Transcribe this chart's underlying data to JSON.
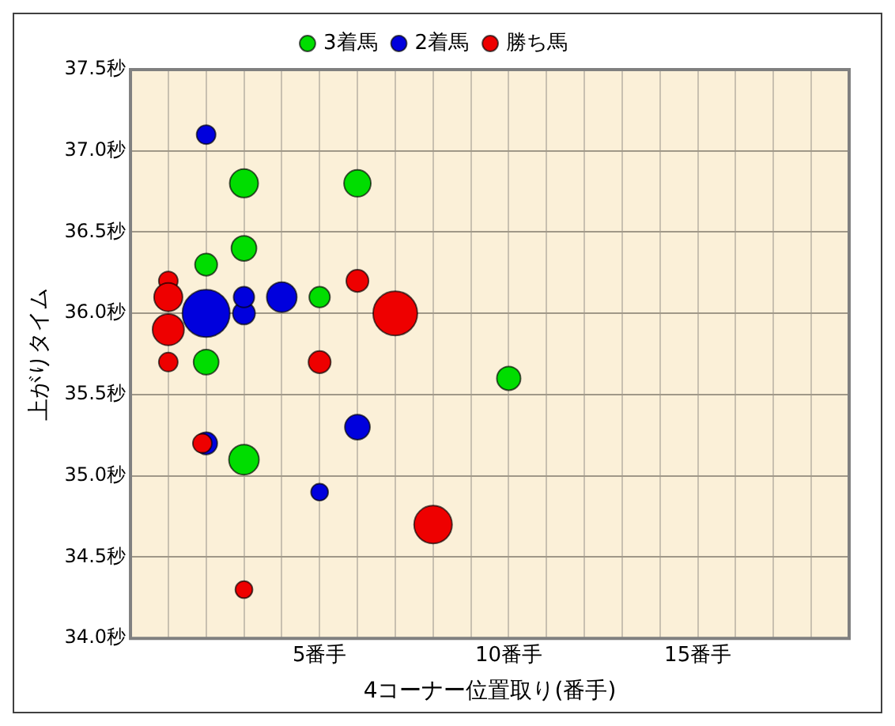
{
  "chart_data": {
    "type": "bubble",
    "xlabel": "4コーナー位置取り(番手)",
    "ylabel": "上がりタイム",
    "xlim": [
      0,
      19
    ],
    "xticks": [
      {
        "value": 1,
        "label": null
      },
      {
        "value": 2,
        "label": null
      },
      {
        "value": 3,
        "label": null
      },
      {
        "value": 4,
        "label": null
      },
      {
        "value": 5,
        "label": "5番手"
      },
      {
        "value": 6,
        "label": null
      },
      {
        "value": 7,
        "label": null
      },
      {
        "value": 8,
        "label": null
      },
      {
        "value": 9,
        "label": null
      },
      {
        "value": 10,
        "label": "10番手"
      },
      {
        "value": 11,
        "label": null
      },
      {
        "value": 12,
        "label": null
      },
      {
        "value": 13,
        "label": null
      },
      {
        "value": 14,
        "label": null
      },
      {
        "value": 15,
        "label": "15番手"
      },
      {
        "value": 16,
        "label": null
      },
      {
        "value": 17,
        "label": null
      },
      {
        "value": 18,
        "label": null
      }
    ],
    "ylim": [
      34.0,
      37.5
    ],
    "yticks": [
      {
        "value": 34.0,
        "label": "34.0秒"
      },
      {
        "value": 34.5,
        "label": "34.5秒"
      },
      {
        "value": 35.0,
        "label": "35.0秒"
      },
      {
        "value": 35.5,
        "label": "35.5秒"
      },
      {
        "value": 36.0,
        "label": "36.0秒"
      },
      {
        "value": 36.5,
        "label": "36.5秒"
      },
      {
        "value": 37.0,
        "label": "37.0秒"
      },
      {
        "value": 37.5,
        "label": "37.5秒"
      }
    ],
    "grid": true,
    "legend": "top",
    "series": [
      {
        "name": "3着馬",
        "color": "#00dd00",
        "x": [
          3,
          6,
          3,
          2,
          5,
          2,
          3,
          10
        ],
        "values": [
          36.8,
          36.8,
          36.4,
          36.3,
          36.1,
          35.7,
          35.1,
          35.6
        ],
        "sizes": [
          0.36,
          0.32,
          0.28,
          0.22,
          0.19,
          0.28,
          0.4,
          0.25
        ]
      },
      {
        "name": "2着馬",
        "color": "#0000dd",
        "x": [
          2,
          2,
          3,
          3,
          4,
          6,
          2,
          5
        ],
        "values": [
          37.1,
          36.0,
          36.0,
          36.1,
          36.1,
          35.3,
          35.2,
          34.9
        ],
        "sizes": [
          0.16,
          1,
          0.22,
          0.19,
          0.4,
          0.28,
          0.22,
          0.13
        ]
      },
      {
        "name": "勝ち馬",
        "color": "#ee0000",
        "x": [
          1,
          1,
          1,
          1,
          6,
          7,
          5,
          1.9,
          8,
          3
        ],
        "values": [
          36.2,
          36.1,
          35.9,
          35.7,
          36.2,
          36.0,
          35.7,
          35.2,
          34.7,
          34.3
        ],
        "sizes": [
          0.16,
          0.36,
          0.44,
          0.16,
          0.22,
          0.87,
          0.22,
          0.16,
          0.64,
          0.13
        ]
      }
    ]
  }
}
